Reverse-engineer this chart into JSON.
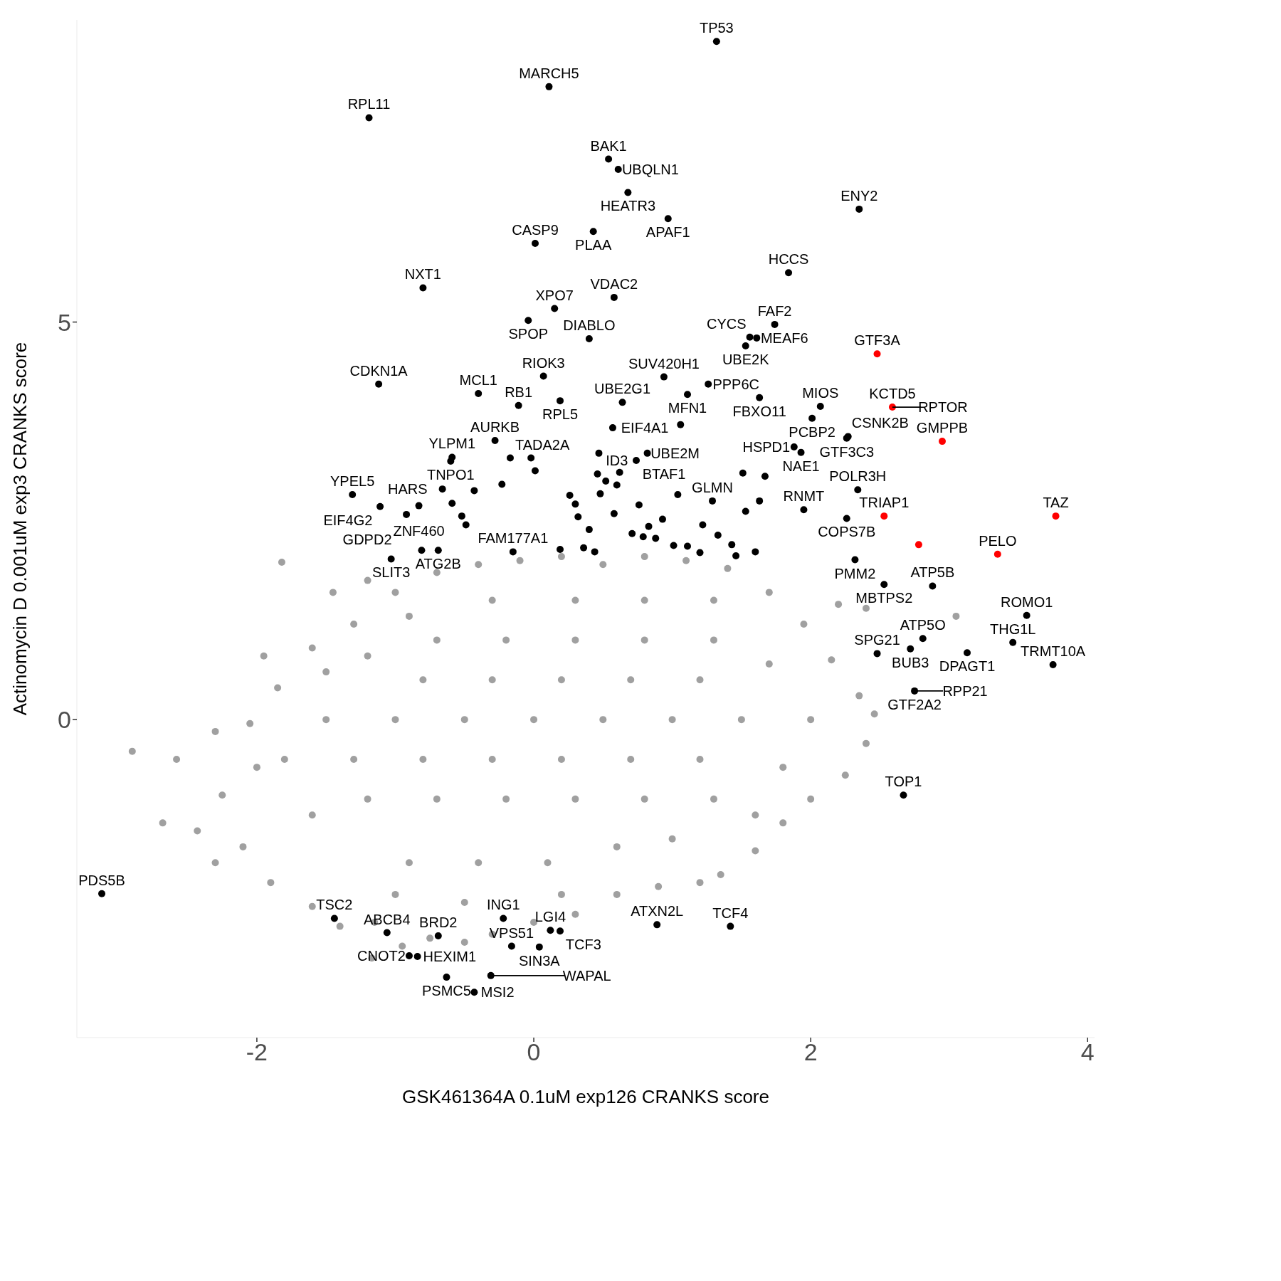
{
  "chart_data": {
    "type": "scatter",
    "xlabel": "GSK461364A 0.1uM exp126 CRANKS score",
    "ylabel": "Actinomycin D 0.001uM exp3 CRANKS score",
    "xlim": [
      -3.3,
      4.05
    ],
    "ylim": [
      -4,
      8.8
    ],
    "xticks": [
      -2,
      0,
      2,
      4
    ],
    "yticks": [
      0,
      5
    ],
    "marker": "circle",
    "series": [
      {
        "color": "#a0a0a0",
        "x": [
          -2.9,
          -2.58,
          -2.68,
          -2.43,
          -2.25,
          -2.3,
          -2.05,
          -1.95,
          -1.82,
          -1.45,
          -1.2,
          -2.1,
          -2.3,
          -1.9,
          -1.6,
          -1.4,
          -1.15,
          -1.17,
          -0.95,
          -0.75,
          -0.5,
          -0.3,
          0.0,
          0.3,
          0.6,
          0.9,
          1.2,
          1.35,
          1.6,
          1.8,
          2.0,
          2.25,
          2.4,
          2.46,
          2.35,
          2.15,
          1.95,
          2.2,
          2.4,
          3.05,
          1.7,
          1.4,
          1.1,
          0.8,
          0.5,
          0.2,
          -0.1,
          -0.4,
          -0.7,
          -1.0,
          -1.3,
          -1.6,
          -1.85,
          -2.0,
          -1.5,
          -1.0,
          -0.5,
          0.0,
          0.5,
          1.0,
          1.5,
          2.0,
          -1.2,
          -0.7,
          -0.2,
          0.3,
          0.8,
          1.3,
          1.8,
          -1.2,
          -0.7,
          -0.2,
          0.3,
          0.8,
          1.3,
          1.7,
          -0.9,
          -0.4,
          0.1,
          0.6,
          1.0,
          -1.6,
          -1.8,
          -1.5,
          -0.8,
          -0.3,
          0.2,
          0.7,
          1.2,
          -0.8,
          -0.3,
          0.2,
          0.7,
          1.2,
          -1.3,
          1.6,
          -0.5,
          0.2,
          -1.0,
          0.8,
          -0.3,
          0.3,
          -0.9,
          1.3
        ],
        "values": [
          -0.4,
          -0.5,
          -1.3,
          -1.4,
          -0.95,
          -0.15,
          -0.05,
          0.8,
          1.98,
          1.6,
          1.75,
          -1.6,
          -1.8,
          -2.05,
          -2.35,
          -2.6,
          -2.55,
          -3.0,
          -2.85,
          -2.75,
          -2.8,
          -2.7,
          -2.55,
          -2.45,
          -2.2,
          -2.1,
          -2.05,
          -1.95,
          -1.65,
          -1.3,
          -1.0,
          -0.7,
          -0.3,
          0.07,
          0.3,
          0.75,
          1.2,
          1.45,
          1.4,
          1.3,
          1.6,
          1.9,
          2.0,
          2.05,
          1.95,
          2.05,
          2.0,
          1.95,
          1.85,
          1.6,
          1.2,
          0.9,
          0.4,
          -0.6,
          0.0,
          0.0,
          0.0,
          0.0,
          0.0,
          0.0,
          0.0,
          0.0,
          -1.0,
          -1.0,
          -1.0,
          -1.0,
          -1.0,
          -1.0,
          -0.6,
          0.8,
          1.0,
          1.0,
          1.0,
          1.0,
          1.0,
          0.7,
          -1.8,
          -1.8,
          -1.8,
          -1.6,
          -1.5,
          -1.2,
          -0.5,
          0.6,
          0.5,
          0.5,
          0.5,
          0.5,
          0.5,
          -0.5,
          -0.5,
          -0.5,
          -0.5,
          -0.5,
          -0.5,
          -1.2,
          -2.3,
          -2.2,
          -2.2,
          1.5,
          1.5,
          1.5,
          1.3,
          1.5
        ]
      },
      {
        "color": "#000000",
        "x": [
          1.32,
          0.11,
          -1.19,
          0.54,
          0.61,
          0.68,
          2.35,
          0.97,
          0.43,
          0.01,
          1.84,
          -0.8,
          0.58,
          0.15,
          -0.04,
          1.74,
          1.56,
          1.61,
          0.4,
          1.53,
          0.07,
          0.64,
          0.94,
          1.11,
          1.26,
          -1.12,
          -0.4,
          1.63,
          2.07,
          -0.11,
          0.19,
          0.57,
          2.01,
          1.88,
          -0.59,
          -0.28,
          -0.6,
          2.26,
          -0.17,
          0.82,
          0.74,
          1.93,
          2.27,
          -1.31,
          -0.66,
          -1.11,
          -0.83,
          -0.92,
          0.6,
          1.29,
          1.95,
          2.34,
          2.26,
          -0.15,
          -1.03,
          -0.69,
          2.32,
          2.88,
          3.56,
          2.53,
          2.81,
          2.72,
          3.46,
          2.48,
          2.75,
          3.13,
          3.75,
          2.67,
          -3.12,
          -1.44,
          -1.06,
          -0.22,
          -0.69,
          0.12,
          0.19,
          0.89,
          1.42,
          0.04,
          -0.84,
          -0.9,
          -0.16,
          -0.63,
          -0.43,
          -0.31,
          -0.43,
          -0.59,
          -0.52,
          -0.49,
          -0.23,
          -0.02,
          0.01,
          0.19,
          0.26,
          0.3,
          0.32,
          0.4,
          0.36,
          0.44,
          0.46,
          0.48,
          0.58,
          0.62,
          0.71,
          0.79,
          0.88,
          0.83,
          0.93,
          1.01,
          1.11,
          1.2,
          1.22,
          1.33,
          1.43,
          1.51,
          1.53,
          1.63,
          1.67,
          1.46,
          1.6,
          0.52,
          0.76,
          1.04,
          0.47,
          -0.81,
          1.06
        ],
        "values": [
          8.53,
          7.96,
          7.57,
          7.05,
          6.92,
          6.63,
          6.42,
          6.3,
          6.14,
          5.99,
          5.62,
          5.43,
          5.31,
          5.17,
          5.02,
          4.97,
          4.81,
          4.8,
          4.79,
          4.7,
          4.32,
          3.99,
          4.31,
          4.09,
          4.22,
          4.22,
          4.1,
          4.05,
          3.94,
          3.95,
          4.01,
          3.67,
          3.79,
          3.43,
          3.3,
          3.51,
          3.25,
          3.54,
          3.29,
          3.35,
          3.26,
          3.36,
          3.56,
          2.83,
          2.9,
          2.68,
          2.69,
          2.58,
          2.95,
          2.75,
          2.64,
          2.89,
          2.53,
          2.11,
          2.02,
          2.13,
          2.01,
          1.68,
          1.31,
          1.7,
          1.02,
          0.89,
          0.97,
          0.83,
          0.36,
          0.84,
          0.69,
          -0.95,
          -2.19,
          -2.5,
          -2.68,
          -2.5,
          -2.72,
          -2.65,
          -2.66,
          -2.58,
          -2.6,
          -2.86,
          -2.98,
          -2.97,
          -2.85,
          -3.24,
          -3.43,
          -3.22,
          2.88,
          2.72,
          2.56,
          2.45,
          2.96,
          3.29,
          3.13,
          2.14,
          2.82,
          2.71,
          2.55,
          2.39,
          2.16,
          2.11,
          3.09,
          2.84,
          2.59,
          3.11,
          2.34,
          2.3,
          2.28,
          2.43,
          2.52,
          2.19,
          2.18,
          2.1,
          2.45,
          2.32,
          2.2,
          3.1,
          2.62,
          2.75,
          3.06,
          2.06,
          2.11,
          3.0,
          2.7,
          2.83,
          3.35,
          2.13,
          3.71
        ]
      },
      {
        "color": "#ff0000",
        "x": [
          2.48,
          2.59,
          2.95,
          3.77,
          2.53,
          3.35,
          2.78
        ],
        "values": [
          4.6,
          3.93,
          3.5,
          2.56,
          2.56,
          2.08,
          2.2
        ]
      }
    ],
    "annotations": [
      {
        "text": "TP53",
        "x": 1.32,
        "y": 8.53
      },
      {
        "text": "MARCH5",
        "x": 0.11,
        "y": 7.96
      },
      {
        "text": "RPL11",
        "x": -1.19,
        "y": 7.57
      },
      {
        "text": "BAK1",
        "x": 0.54,
        "y": 7.05
      },
      {
        "text": "UBQLN1",
        "x": 0.61,
        "y": 6.92
      },
      {
        "text": "HEATR3",
        "x": 0.68,
        "y": 6.63
      },
      {
        "text": "ENY2",
        "x": 2.35,
        "y": 6.42
      },
      {
        "text": "APAF1",
        "x": 0.97,
        "y": 6.3
      },
      {
        "text": "PLAA",
        "x": 0.43,
        "y": 6.14
      },
      {
        "text": "CASP9",
        "x": 0.01,
        "y": 5.99
      },
      {
        "text": "HCCS",
        "x": 1.84,
        "y": 5.62
      },
      {
        "text": "NXT1",
        "x": -0.8,
        "y": 5.43
      },
      {
        "text": "VDAC2",
        "x": 0.58,
        "y": 5.31
      },
      {
        "text": "XPO7",
        "x": 0.15,
        "y": 5.17
      },
      {
        "text": "SPOP",
        "x": -0.04,
        "y": 5.02
      },
      {
        "text": "FAF2",
        "x": 1.74,
        "y": 4.97
      },
      {
        "text": "CYCS",
        "x": 1.56,
        "y": 4.81
      },
      {
        "text": "MEAF6",
        "x": 1.61,
        "y": 4.8
      },
      {
        "text": "DIABLO",
        "x": 0.4,
        "y": 4.79
      },
      {
        "text": "UBE2K",
        "x": 1.53,
        "y": 4.7
      },
      {
        "text": "GTF3A",
        "x": 2.48,
        "y": 4.6
      },
      {
        "text": "RIOK3",
        "x": 0.07,
        "y": 4.32
      },
      {
        "text": "UBE2G1",
        "x": 0.64,
        "y": 3.99
      },
      {
        "text": "SUV420H1",
        "x": 0.94,
        "y": 4.31
      },
      {
        "text": "MFN1",
        "x": 1.11,
        "y": 4.09
      },
      {
        "text": "PPP6C",
        "x": 1.26,
        "y": 4.22
      },
      {
        "text": "CDKN1A",
        "x": -1.12,
        "y": 4.22
      },
      {
        "text": "MCL1",
        "x": -0.4,
        "y": 4.1
      },
      {
        "text": "FBXO11",
        "x": 1.63,
        "y": 4.05
      },
      {
        "text": "MIOS",
        "x": 2.07,
        "y": 3.94
      },
      {
        "text": "KCTD5",
        "x": 2.59,
        "y": 3.93
      },
      {
        "text": "RB1",
        "x": -0.11,
        "y": 3.95
      },
      {
        "text": "RPL5",
        "x": 0.19,
        "y": 4.01
      },
      {
        "text": "EIF4A1",
        "x": 0.57,
        "y": 3.67
      },
      {
        "text": "PCBP2",
        "x": 2.01,
        "y": 3.79
      },
      {
        "text": "HSPD1",
        "x": 1.88,
        "y": 3.43
      },
      {
        "text": "YLPM1",
        "x": -0.59,
        "y": 3.3
      },
      {
        "text": "AURKB",
        "x": -0.28,
        "y": 3.51
      },
      {
        "text": "TNPO1",
        "x": -0.6,
        "y": 3.25
      },
      {
        "text": "GTF3C3",
        "x": 2.26,
        "y": 3.54
      },
      {
        "text": "GMPPB",
        "x": 2.95,
        "y": 3.5
      },
      {
        "text": "TADA2A",
        "x": -0.17,
        "y": 3.29
      },
      {
        "text": "UBE2M",
        "x": 0.82,
        "y": 3.35
      },
      {
        "text": "BTAF1",
        "x": 0.74,
        "y": 3.26
      },
      {
        "text": "NAE1",
        "x": 1.93,
        "y": 3.36
      },
      {
        "text": "CSNK2B",
        "x": 2.27,
        "y": 3.56
      },
      {
        "text": "RPTOR",
        "x": 2.59,
        "y": 3.93
      },
      {
        "text": "YPEL5",
        "x": -1.31,
        "y": 2.83
      },
      {
        "text": "HARS",
        "x": -0.66,
        "y": 2.9
      },
      {
        "text": "EIF4G2",
        "x": -1.11,
        "y": 2.68
      },
      {
        "text": "ZNF460",
        "x": -0.83,
        "y": 2.69
      },
      {
        "text": "GDPD2",
        "x": -0.92,
        "y": 2.58
      },
      {
        "text": "ID3",
        "x": 0.6,
        "y": 2.95
      },
      {
        "text": "GLMN",
        "x": 1.29,
        "y": 2.75
      },
      {
        "text": "RNMT",
        "x": 1.95,
        "y": 2.64
      },
      {
        "text": "POLR3H",
        "x": 2.34,
        "y": 2.89
      },
      {
        "text": "TAZ",
        "x": 3.77,
        "y": 2.56
      },
      {
        "text": "TRIAP1",
        "x": 2.53,
        "y": 2.56
      },
      {
        "text": "COPS7B",
        "x": 2.26,
        "y": 2.53
      },
      {
        "text": "PELO",
        "x": 3.35,
        "y": 2.08
      },
      {
        "text": "FAM177A1",
        "x": -0.15,
        "y": 2.11
      },
      {
        "text": "SLIT3",
        "x": -1.03,
        "y": 2.02
      },
      {
        "text": "ATG2B",
        "x": -0.69,
        "y": 2.13
      },
      {
        "text": "PMM2",
        "x": 2.32,
        "y": 2.01
      },
      {
        "text": "ATP5B",
        "x": 2.88,
        "y": 1.68
      },
      {
        "text": "ROMO1",
        "x": 3.56,
        "y": 1.31
      },
      {
        "text": "MBTPS2",
        "x": 2.53,
        "y": 1.7
      },
      {
        "text": "ATP5O",
        "x": 2.81,
        "y": 1.02
      },
      {
        "text": "BUB3",
        "x": 2.72,
        "y": 0.89
      },
      {
        "text": "THG1L",
        "x": 3.46,
        "y": 0.97
      },
      {
        "text": "SPG21",
        "x": 2.48,
        "y": 0.83
      },
      {
        "text": "GTF2A2",
        "x": 2.75,
        "y": 0.36
      },
      {
        "text": "DPAGT1",
        "x": 3.13,
        "y": 0.84
      },
      {
        "text": "TRMT10A",
        "x": 3.75,
        "y": 0.69
      },
      {
        "text": "RPP21",
        "x": 2.75,
        "y": 0.36
      },
      {
        "text": "TOP1",
        "x": 2.67,
        "y": -0.95
      },
      {
        "text": "PDS5B",
        "x": -3.12,
        "y": -2.19
      },
      {
        "text": "TSC2",
        "x": -1.44,
        "y": -2.5
      },
      {
        "text": "ABCB4",
        "x": -1.06,
        "y": -2.68
      },
      {
        "text": "ING1",
        "x": -0.22,
        "y": -2.5
      },
      {
        "text": "BRD2",
        "x": -0.69,
        "y": -2.72
      },
      {
        "text": "LGI4",
        "x": 0.12,
        "y": -2.65
      },
      {
        "text": "TCF3",
        "x": 0.19,
        "y": -2.66
      },
      {
        "text": "ATXN2L",
        "x": 0.89,
        "y": -2.58
      },
      {
        "text": "TCF4",
        "x": 1.42,
        "y": -2.6
      },
      {
        "text": "SIN3A",
        "x": 0.04,
        "y": -2.86
      },
      {
        "text": "HEXIM1",
        "x": -0.84,
        "y": -2.98
      },
      {
        "text": "CNOT2",
        "x": -0.9,
        "y": -2.97
      },
      {
        "text": "VPS51",
        "x": -0.16,
        "y": -2.85
      },
      {
        "text": "PSMC5",
        "x": -0.63,
        "y": -3.24
      },
      {
        "text": "MSI2",
        "x": -0.43,
        "y": -3.43
      },
      {
        "text": "WAPAL",
        "x": -0.31,
        "y": -3.22
      }
    ]
  }
}
